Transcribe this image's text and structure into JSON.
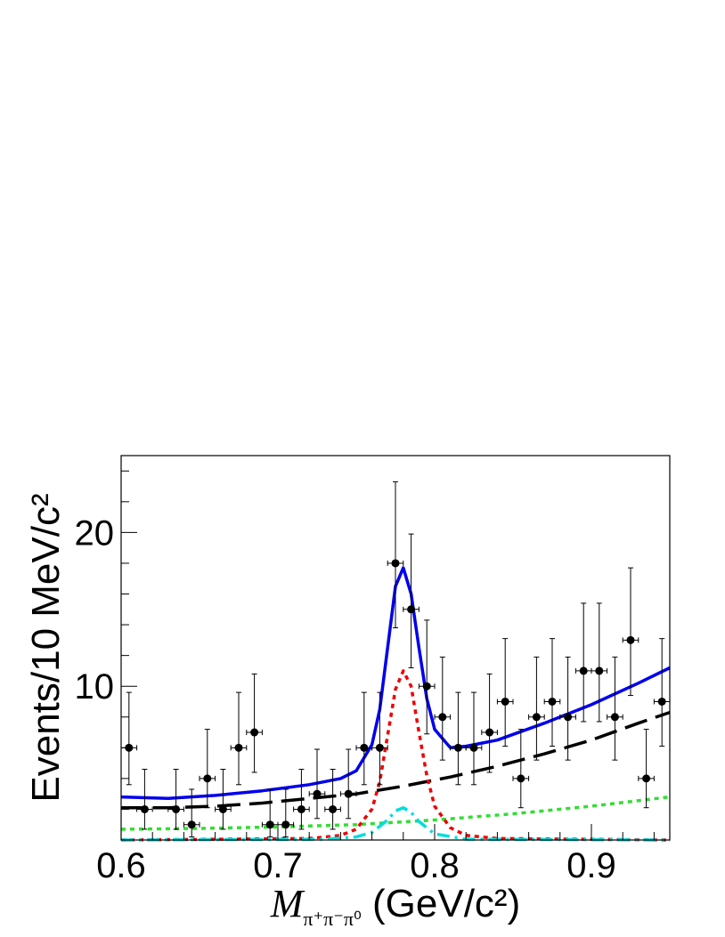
{
  "chart_data": {
    "type": "scatter",
    "xlabel": {
      "symbol": "M",
      "subscript": "π⁺π⁻π⁰",
      "unit": " (GeV/c²)"
    },
    "ylabel": "Events/10 MeV/c²",
    "xlim": [
      0.6,
      0.95
    ],
    "ylim": [
      0,
      25
    ],
    "x_ticks": [
      "0.6",
      "0.7",
      "0.8",
      "0.9"
    ],
    "x_tick_values": [
      0.6,
      0.7,
      0.8,
      0.9
    ],
    "y_ticks": [
      "10",
      "20"
    ],
    "y_tick_values": [
      10,
      20
    ],
    "grid": false,
    "series": [
      {
        "kind": "points",
        "color": "#000000",
        "x": [
          0.605,
          0.615,
          0.635,
          0.645,
          0.655,
          0.665,
          0.675,
          0.685,
          0.695,
          0.705,
          0.715,
          0.725,
          0.735,
          0.745,
          0.755,
          0.765,
          0.775,
          0.785,
          0.795,
          0.805,
          0.815,
          0.825,
          0.835,
          0.845,
          0.855,
          0.865,
          0.875,
          0.885,
          0.895,
          0.905,
          0.915,
          0.925,
          0.935,
          0.945
        ],
        "y": [
          6,
          2,
          2,
          1,
          4,
          2,
          6,
          7,
          1,
          1,
          2,
          3,
          2,
          3,
          6,
          6,
          18,
          15,
          10,
          8,
          6,
          6,
          7,
          9,
          4,
          8,
          9,
          8,
          11,
          11,
          8,
          13,
          4,
          9
        ],
        "yerr_low": [
          2.4,
          1.3,
          1.3,
          0.8,
          1.9,
          1.3,
          2.4,
          2.6,
          0.8,
          0.8,
          1.3,
          1.6,
          1.3,
          1.6,
          2.4,
          2.4,
          4.2,
          3.8,
          3.1,
          2.8,
          2.4,
          2.4,
          2.6,
          2.9,
          1.9,
          2.8,
          2.9,
          2.8,
          3.3,
          3.3,
          2.8,
          3.6,
          1.9,
          2.9
        ],
        "yerr_high": [
          3.6,
          2.6,
          2.6,
          2.3,
          3.2,
          2.6,
          3.6,
          3.8,
          2.3,
          2.3,
          2.6,
          2.9,
          2.6,
          2.9,
          3.6,
          3.6,
          5.3,
          4.9,
          4.3,
          3.9,
          3.6,
          3.6,
          3.8,
          4.1,
          3.2,
          3.9,
          4.1,
          3.9,
          4.4,
          4.4,
          3.9,
          4.7,
          3.2,
          4.1
        ],
        "xerr": 0.005
      },
      {
        "kind": "line",
        "style": "solid",
        "color": "#0000ee",
        "x": [
          0.6,
          0.63,
          0.66,
          0.69,
          0.72,
          0.74,
          0.75,
          0.76,
          0.765,
          0.77,
          0.775,
          0.78,
          0.785,
          0.79,
          0.795,
          0.8,
          0.81,
          0.82,
          0.84,
          0.87,
          0.9,
          0.93,
          0.95
        ],
        "y": [
          2.8,
          2.7,
          2.9,
          3.2,
          3.6,
          4.0,
          4.5,
          6.2,
          8.5,
          12.5,
          16.5,
          17.7,
          16.0,
          12.5,
          9.2,
          7.2,
          6.0,
          6.1,
          6.5,
          7.6,
          8.8,
          10.2,
          11.2
        ]
      },
      {
        "kind": "line",
        "style": "dashed",
        "color": "#000000",
        "x": [
          0.6,
          0.63,
          0.66,
          0.69,
          0.72,
          0.75,
          0.78,
          0.81,
          0.84,
          0.87,
          0.9,
          0.93,
          0.95
        ],
        "y": [
          2.1,
          2.1,
          2.2,
          2.4,
          2.7,
          3.0,
          3.5,
          4.1,
          4.8,
          5.6,
          6.5,
          7.6,
          8.3
        ]
      },
      {
        "kind": "line",
        "style": "dotted",
        "color": "#33dd33",
        "x": [
          0.6,
          0.65,
          0.7,
          0.75,
          0.8,
          0.85,
          0.9,
          0.95
        ],
        "y": [
          0.7,
          0.75,
          0.85,
          1.0,
          1.3,
          1.7,
          2.2,
          2.8
        ]
      },
      {
        "kind": "line",
        "style": "dotted",
        "color": "#ee0000",
        "x": [
          0.6,
          0.72,
          0.74,
          0.75,
          0.76,
          0.765,
          0.77,
          0.775,
          0.78,
          0.785,
          0.79,
          0.795,
          0.8,
          0.81,
          0.82,
          0.84,
          0.95
        ],
        "y": [
          0,
          0.1,
          0.3,
          0.7,
          2.0,
          3.8,
          6.8,
          9.8,
          11.0,
          10.0,
          7.0,
          4.2,
          2.2,
          0.8,
          0.3,
          0.1,
          0
        ]
      },
      {
        "kind": "line",
        "style": "dashdot",
        "color": "#00dddd",
        "x": [
          0.6,
          0.73,
          0.75,
          0.76,
          0.77,
          0.775,
          0.78,
          0.785,
          0.79,
          0.8,
          0.82,
          0.95
        ],
        "y": [
          0,
          0.05,
          0.2,
          0.5,
          1.3,
          1.9,
          2.1,
          1.8,
          1.2,
          0.4,
          0.05,
          0
        ]
      }
    ]
  }
}
